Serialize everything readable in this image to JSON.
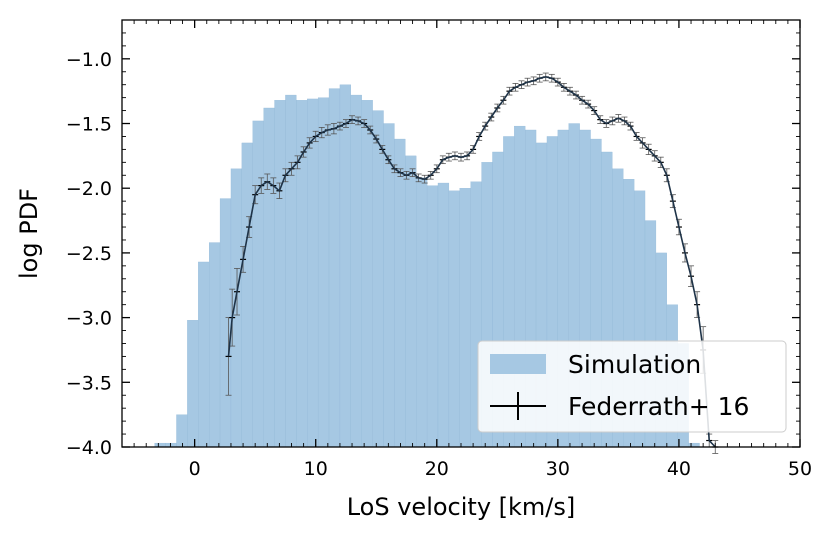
{
  "chart_data": {
    "type": "bar",
    "title": "",
    "xlabel": "LoS velocity [km/s]",
    "ylabel": "log PDF",
    "xlim": [
      -6,
      50
    ],
    "ylim": [
      -4.0,
      -0.7
    ],
    "xticks": [
      0,
      10,
      20,
      30,
      40,
      50
    ],
    "yticks": [
      -4.0,
      -3.5,
      -3.0,
      -2.5,
      -2.0,
      -1.5,
      -1.0
    ],
    "ytick_labels": [
      "−4.0",
      "−3.5",
      "−3.0",
      "−2.5",
      "−2.0",
      "−1.5",
      "−1.0"
    ],
    "xtick_labels": [
      "0",
      "10",
      "20",
      "30",
      "40",
      "50"
    ],
    "legend_position": "lower-right",
    "series": [
      {
        "name": "Simulation",
        "kind": "histogram",
        "color": "#a6c8e3",
        "bin_width": 0.9,
        "bin_start": -3.3,
        "values": [
          -3.97,
          -3.97,
          -3.75,
          -3.02,
          -2.57,
          -2.42,
          -2.08,
          -1.85,
          -1.65,
          -1.48,
          -1.38,
          -1.32,
          -1.28,
          -1.32,
          -1.31,
          -1.3,
          -1.23,
          -1.2,
          -1.28,
          -1.32,
          -1.4,
          -1.5,
          -1.62,
          -1.75,
          -1.92,
          -1.98,
          -1.96,
          -2.02,
          -2.0,
          -1.95,
          -1.8,
          -1.72,
          -1.6,
          -1.52,
          -1.55,
          -1.65,
          -1.6,
          -1.55,
          -1.5,
          -1.55,
          -1.62,
          -1.72,
          -1.85,
          -1.93,
          -2.02,
          -2.25,
          -2.5,
          -2.9,
          -3.2,
          -3.97
        ]
      },
      {
        "name": "Federrath+ 16",
        "kind": "errorbar",
        "color": "#000000",
        "x": [
          2.8,
          3.1,
          3.5,
          4.0,
          4.5,
          5.0,
          5.5,
          6.0,
          6.5,
          7.0,
          7.5,
          8.0,
          8.5,
          9.0,
          9.5,
          10.0,
          10.5,
          11.0,
          11.5,
          12.0,
          12.5,
          13.0,
          13.5,
          14.0,
          14.5,
          15.0,
          15.5,
          16.0,
          16.5,
          17.0,
          17.5,
          18.0,
          18.5,
          19.0,
          19.5,
          20.0,
          20.5,
          21.0,
          21.5,
          22.0,
          22.5,
          23.0,
          23.5,
          24.0,
          24.5,
          25.0,
          25.5,
          26.0,
          26.5,
          27.0,
          27.5,
          28.0,
          28.5,
          29.0,
          29.5,
          30.0,
          30.5,
          31.0,
          31.5,
          32.0,
          32.5,
          33.0,
          33.5,
          34.0,
          34.5,
          35.0,
          35.5,
          36.0,
          36.5,
          37.0,
          37.5,
          38.0,
          38.5,
          39.0,
          39.5,
          40.0,
          40.5,
          41.0,
          41.5,
          42.0,
          42.5,
          43.0
        ],
        "y": [
          -3.3,
          -3.0,
          -2.8,
          -2.55,
          -2.3,
          -2.05,
          -1.98,
          -1.95,
          -1.98,
          -2.02,
          -1.9,
          -1.85,
          -1.8,
          -1.72,
          -1.65,
          -1.6,
          -1.57,
          -1.55,
          -1.54,
          -1.52,
          -1.5,
          -1.47,
          -1.48,
          -1.5,
          -1.55,
          -1.62,
          -1.7,
          -1.78,
          -1.85,
          -1.88,
          -1.9,
          -1.88,
          -1.92,
          -1.93,
          -1.9,
          -1.85,
          -1.78,
          -1.76,
          -1.75,
          -1.76,
          -1.75,
          -1.7,
          -1.6,
          -1.52,
          -1.45,
          -1.38,
          -1.32,
          -1.25,
          -1.22,
          -1.2,
          -1.18,
          -1.17,
          -1.15,
          -1.14,
          -1.15,
          -1.18,
          -1.22,
          -1.25,
          -1.28,
          -1.32,
          -1.35,
          -1.4,
          -1.47,
          -1.5,
          -1.48,
          -1.46,
          -1.48,
          -1.52,
          -1.6,
          -1.65,
          -1.7,
          -1.75,
          -1.8,
          -1.9,
          -2.1,
          -2.3,
          -2.5,
          -2.68,
          -2.9,
          -3.25,
          -3.95,
          -4.0
        ],
        "yerr": [
          0.3,
          0.22,
          0.18,
          0.1,
          0.08,
          0.07,
          0.06,
          0.06,
          0.06,
          0.06,
          0.05,
          0.05,
          0.05,
          0.04,
          0.04,
          0.04,
          0.04,
          0.04,
          0.04,
          0.03,
          0.03,
          0.03,
          0.03,
          0.03,
          0.03,
          0.03,
          0.03,
          0.03,
          0.03,
          0.03,
          0.03,
          0.03,
          0.03,
          0.03,
          0.03,
          0.03,
          0.03,
          0.03,
          0.03,
          0.03,
          0.03,
          0.03,
          0.03,
          0.03,
          0.03,
          0.03,
          0.03,
          0.03,
          0.03,
          0.03,
          0.03,
          0.03,
          0.03,
          0.03,
          0.03,
          0.03,
          0.03,
          0.03,
          0.03,
          0.03,
          0.03,
          0.03,
          0.03,
          0.03,
          0.03,
          0.03,
          0.03,
          0.03,
          0.03,
          0.04,
          0.04,
          0.04,
          0.04,
          0.05,
          0.05,
          0.06,
          0.07,
          0.08,
          0.1,
          0.18,
          0.05,
          0.05
        ]
      }
    ]
  }
}
